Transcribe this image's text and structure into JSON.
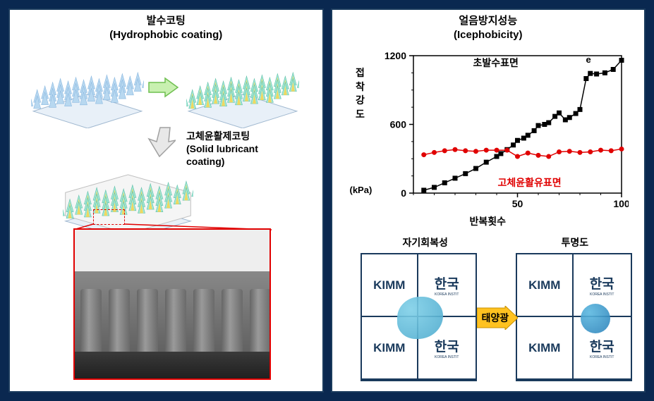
{
  "colors": {
    "page_bg": "#0a2850",
    "panel_bg": "#ffffff",
    "panel_border": "#1a3a5c",
    "accent_red": "#e00000",
    "arrow_green_light": "#c8f0b0",
    "arrow_green_dark": "#6fbf50",
    "arrow_gray_light": "#e8e8e8",
    "arrow_gray_dark": "#a0a0a0",
    "arrow_yellow": "#ffc220",
    "cone_blue": "#b8d8f0",
    "cone_teal_light": "#90e8d0",
    "cone_teal_dark": "#f5e080",
    "kimm_navy": "#1a3a5c"
  },
  "left_panel": {
    "hydro_title_kr": "발수코팅",
    "hydro_title_en": "(Hydrophobic coating)",
    "solid_title_kr": "고체윤활제코팅",
    "solid_title_en": "(Solid lubricant",
    "solid_title_en2": "coating)",
    "cone_array": {
      "rows": 6,
      "cols": 7,
      "color_uncoated": "#b8d8f0",
      "color_coated_outer": "#a0e8d8",
      "color_coated_inner": "#f0d860",
      "slab_color": "#e0e0e0"
    },
    "sem": {
      "pillar_count": 7,
      "bg_top": "#eeeeee",
      "bg_bottom": "#555555"
    }
  },
  "right_panel": {
    "ice_title_kr": "얼음방지성능",
    "ice_title_en": "(Icephobicity)",
    "chart": {
      "type": "scatter-line",
      "x_label": "반복횟수",
      "y_label_chars": [
        "접",
        "착",
        "강",
        "도"
      ],
      "y_unit": "(kPa)",
      "title_fontsize": 15,
      "label_fontsize": 14,
      "xlim": [
        0,
        100
      ],
      "ylim": [
        0,
        1200
      ],
      "xticks": [
        50,
        100
      ],
      "yticks": [
        0,
        600,
        1200
      ],
      "minor_ytick_step": 150,
      "minor_xtick_step": 10,
      "axis_color": "#000000",
      "background_color": "#ffffff",
      "grid": false,
      "series": [
        {
          "name": "초발수표면",
          "label": "초발수표면",
          "color": "#000000",
          "marker": "square",
          "marker_size": 7,
          "line_width": 1.5,
          "x": [
            5,
            10,
            15,
            20,
            25,
            30,
            35,
            40,
            42,
            45,
            48,
            50,
            53,
            55,
            58,
            60,
            63,
            65,
            68,
            70,
            73,
            75,
            78,
            80,
            83,
            85,
            88,
            92,
            96,
            100
          ],
          "y": [
            25,
            50,
            90,
            130,
            170,
            215,
            270,
            320,
            345,
            380,
            420,
            460,
            480,
            505,
            545,
            590,
            600,
            615,
            670,
            700,
            640,
            660,
            695,
            730,
            1000,
            1045,
            1040,
            1050,
            1080,
            1160
          ],
          "annotation": "e"
        },
        {
          "name": "고체윤활유표면",
          "label": "고체윤활유표면",
          "color": "#e00000",
          "marker": "circle",
          "marker_size": 7,
          "line_width": 1.5,
          "x": [
            5,
            10,
            15,
            20,
            25,
            30,
            35,
            40,
            45,
            50,
            55,
            60,
            65,
            70,
            75,
            80,
            85,
            90,
            95,
            100
          ],
          "y": [
            335,
            355,
            370,
            380,
            370,
            365,
            375,
            375,
            375,
            320,
            350,
            330,
            320,
            360,
            365,
            355,
            360,
            375,
            370,
            385
          ]
        }
      ]
    },
    "photos": {
      "label1": "자기회복성",
      "label2": "투명도",
      "sun_label": "태양광",
      "kimm_text": "KIMM",
      "kimm_sub": "KOREA INSTIT",
      "han_text": "한국",
      "han_sub": "KOREA INSTIT"
    }
  }
}
